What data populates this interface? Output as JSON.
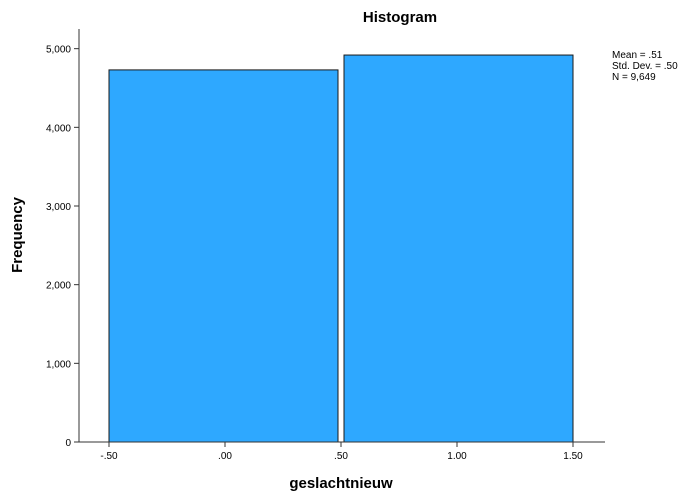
{
  "chart_data": {
    "type": "bar",
    "title": "Histogram",
    "xlabel": "geslachtnieuw",
    "ylabel": "Frequency",
    "bins": [
      {
        "from": -0.5,
        "to": 0.5,
        "value": 4730
      },
      {
        "from": 0.5,
        "to": 1.5,
        "value": 4919
      }
    ],
    "xlim": [
      -0.5,
      1.5
    ],
    "ylim": [
      0,
      5250
    ],
    "x_ticks": [
      {
        "value": -0.5,
        "label": "-.50"
      },
      {
        "value": 0.0,
        "label": ".00"
      },
      {
        "value": 0.5,
        "label": ".50"
      },
      {
        "value": 1.0,
        "label": "1.00"
      },
      {
        "value": 1.5,
        "label": "1.50"
      }
    ],
    "y_ticks": [
      {
        "value": 0,
        "label": "0"
      },
      {
        "value": 1000,
        "label": "1,000"
      },
      {
        "value": 2000,
        "label": "2,000"
      },
      {
        "value": 3000,
        "label": "3,000"
      },
      {
        "value": 4000,
        "label": "4,000"
      },
      {
        "value": 5000,
        "label": "5,000"
      }
    ],
    "stats": {
      "mean": "Mean = .51",
      "std": "Std. Dev. = .50",
      "n": "N = 9,649"
    },
    "bar_color": "#2ea8ff",
    "grid": false
  }
}
